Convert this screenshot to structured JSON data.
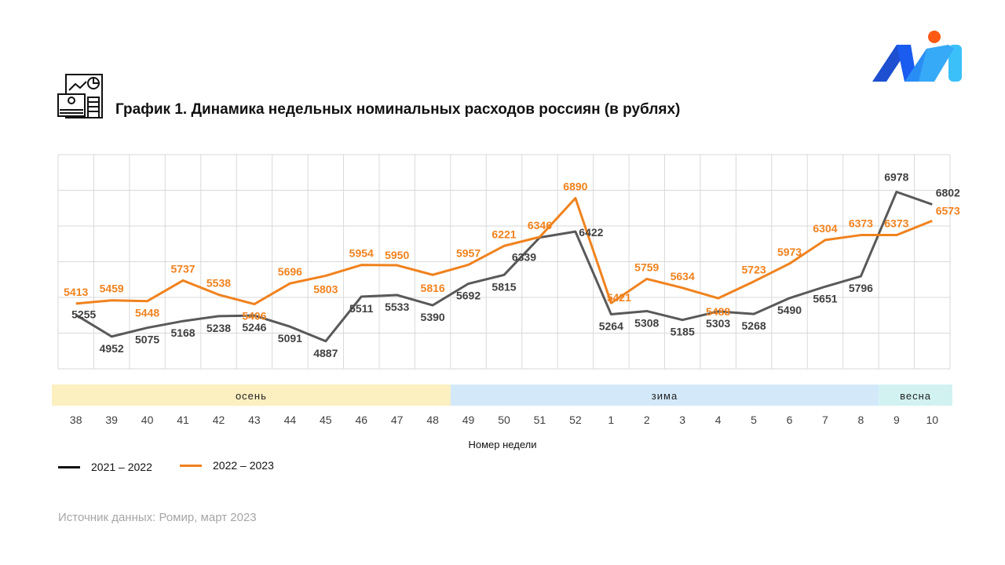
{
  "title": "График 1. Динамика недельных номинальных расходов россиян (в рублях)",
  "source": "Источник данных: Ромир, март 2023",
  "colors": {
    "series1": "#595959",
    "series2": "#f0821e",
    "autumn": "#fcefc0",
    "winter": "#d3e9fa",
    "spring": "#d2f2f2"
  },
  "chart_data": {
    "type": "line",
    "title": "График 1. Динамика недельных номинальных расходов россиян (в рублях)",
    "xlabel": "Номер недели",
    "ylabel": "",
    "ylim": [
      4500,
      7500
    ],
    "grid": true,
    "legend_position": "bottom-left",
    "categories": [
      "38",
      "39",
      "40",
      "41",
      "42",
      "43",
      "44",
      "45",
      "46",
      "47",
      "48",
      "49",
      "50",
      "51",
      "52",
      "1",
      "2",
      "3",
      "4",
      "5",
      "6",
      "7",
      "8",
      "9",
      "10"
    ],
    "seasons": [
      {
        "label": "осень",
        "from": "38",
        "to": "48"
      },
      {
        "label": "зима",
        "from": "49",
        "to": "8"
      },
      {
        "label": "весна",
        "from": "9",
        "to": "10"
      }
    ],
    "series": [
      {
        "name": "2021 – 2022",
        "values": [
          5255,
          4952,
          5075,
          5168,
          5238,
          5246,
          5091,
          4887,
          5511,
          5533,
          5390,
          5692,
          5815,
          6339,
          6422,
          5264,
          5308,
          5185,
          5303,
          5268,
          5490,
          5651,
          5796,
          6978,
          6802
        ]
      },
      {
        "name": "2022 – 2023",
        "values": [
          5413,
          5459,
          5448,
          5737,
          5538,
          5406,
          5696,
          5803,
          5954,
          5950,
          5816,
          5957,
          6221,
          6346,
          6890,
          5421,
          5759,
          5634,
          5488,
          5723,
          5973,
          6304,
          6373,
          6373,
          6573
        ]
      }
    ]
  }
}
